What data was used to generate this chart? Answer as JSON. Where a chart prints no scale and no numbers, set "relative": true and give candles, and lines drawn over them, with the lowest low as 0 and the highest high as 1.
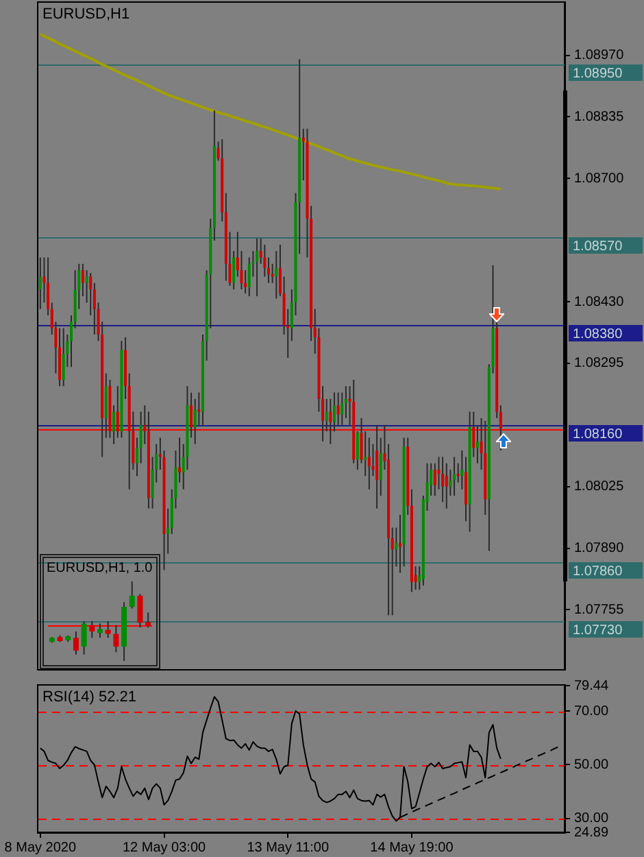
{
  "chart_data": [
    {
      "type": "candlestick",
      "title": "EURUSD,H1",
      "categories": [
        null,
        null,
        null,
        null,
        null,
        null,
        null,
        null,
        null,
        null,
        null,
        null,
        null,
        null,
        null,
        null,
        null,
        null,
        null,
        null,
        null,
        null,
        null,
        null,
        null,
        null,
        null,
        null,
        null,
        null,
        null,
        null,
        null,
        null,
        null,
        null,
        null,
        null,
        null,
        null,
        null,
        null,
        null,
        null,
        null,
        null,
        null,
        null,
        null,
        null,
        null,
        null,
        null,
        null,
        null,
        null,
        null,
        null,
        null,
        null,
        null,
        null,
        null,
        null,
        null,
        null,
        null,
        null,
        null,
        null,
        null,
        null,
        null,
        null,
        null,
        null,
        null,
        null,
        null,
        null,
        null,
        null,
        null,
        null,
        null,
        null,
        null,
        null,
        null,
        null,
        null,
        null,
        null,
        null,
        null,
        null,
        null,
        null,
        null,
        null,
        null,
        null,
        null,
        null,
        null,
        null,
        null,
        null,
        null,
        null,
        null,
        null,
        null,
        null,
        null,
        null,
        null,
        null,
        null,
        null,
        null,
        null,
        null,
        null,
        null,
        null,
        null,
        null,
        null,
        null,
        null,
        null,
        null,
        null,
        null,
        null
      ],
      "ohlc": [
        [
          1.08457,
          1.08527,
          1.08414,
          1.08485
        ],
        [
          1.08485,
          1.08527,
          1.08428,
          1.08471
        ],
        [
          1.08471,
          1.08527,
          1.084,
          1.08414
        ],
        [
          1.08414,
          1.08428,
          1.08358,
          1.08372
        ],
        [
          1.08372,
          1.08386,
          1.08273,
          1.0833
        ],
        [
          1.0833,
          1.08372,
          1.08245,
          1.08259
        ],
        [
          1.08259,
          1.08372,
          1.08245,
          1.08316
        ],
        [
          1.08316,
          1.08358,
          1.08287,
          1.08344
        ],
        [
          1.08344,
          1.084,
          1.08287,
          1.08386
        ],
        [
          1.08386,
          1.08499,
          1.08372,
          1.08457
        ],
        [
          1.08457,
          1.08513,
          1.08414,
          1.08499
        ],
        [
          1.08499,
          1.08513,
          1.08442,
          1.08471
        ],
        [
          1.08471,
          1.08499,
          1.08428,
          1.08485
        ],
        [
          1.08485,
          1.08493,
          1.084,
          1.08457
        ],
        [
          1.08457,
          1.08471,
          1.08358,
          1.08414
        ],
        [
          1.08414,
          1.08428,
          1.08344,
          1.08358
        ],
        [
          1.08358,
          1.08386,
          1.0809,
          1.08175
        ],
        [
          1.08175,
          1.08273,
          1.08132,
          1.08245
        ],
        [
          1.08245,
          1.08259,
          1.08132,
          1.08146
        ],
        [
          1.08146,
          1.08203,
          1.08118,
          1.08189
        ],
        [
          1.08189,
          1.08245,
          1.08132,
          1.08146
        ],
        [
          1.08146,
          1.08344,
          1.08132,
          1.08324
        ],
        [
          1.08324,
          1.08352,
          1.08217,
          1.08245
        ],
        [
          1.08245,
          1.08273,
          1.08019,
          1.08146
        ],
        [
          1.08146,
          1.08189,
          1.08062,
          1.08076
        ],
        [
          1.08076,
          1.08132,
          1.08048,
          1.0811
        ],
        [
          1.0811,
          1.08189,
          1.08076,
          1.0816
        ],
        [
          1.0816,
          1.08203,
          1.08118,
          1.08146
        ],
        [
          1.08146,
          1.08189,
          1.07977,
          1.08
        ],
        [
          1.08,
          1.0809,
          1.07977,
          1.08062
        ],
        [
          1.08062,
          1.08118,
          1.08034,
          1.08096
        ],
        [
          1.08096,
          1.08132,
          1.08062,
          1.0809
        ],
        [
          1.0809,
          1.08104,
          1.07842,
          1.07921
        ],
        [
          1.07921,
          1.07977,
          1.07878,
          1.07935
        ],
        [
          1.07935,
          1.08019,
          1.07921,
          1.08
        ],
        [
          1.08,
          1.08104,
          1.07977,
          1.08067
        ],
        [
          1.08067,
          1.08132,
          1.08034,
          1.08056
        ],
        [
          1.08056,
          1.08118,
          1.08019,
          1.0809
        ],
        [
          1.0809,
          1.08245,
          1.08062,
          1.08203
        ],
        [
          1.08203,
          1.08231,
          1.08132,
          1.08155
        ],
        [
          1.08155,
          1.08217,
          1.08118,
          1.08194
        ],
        [
          1.08194,
          1.08231,
          1.0816,
          1.08189
        ],
        [
          1.08189,
          1.08358,
          1.0816,
          1.08344
        ],
        [
          1.08344,
          1.08499,
          1.08301,
          1.0849
        ],
        [
          1.0849,
          1.08612,
          1.08372,
          1.08592
        ],
        [
          1.08592,
          1.08849,
          1.08564,
          1.08772
        ],
        [
          1.08767,
          1.08781,
          1.08739,
          1.08744
        ],
        [
          1.08744,
          1.08786,
          1.08606,
          1.08626
        ],
        [
          1.08626,
          1.08668,
          1.08476,
          1.08513
        ],
        [
          1.08513,
          1.08583,
          1.08465,
          1.08471
        ],
        [
          1.08471,
          1.08541,
          1.08457,
          1.08527
        ],
        [
          1.08527,
          1.08583,
          1.08485,
          1.08499
        ],
        [
          1.08499,
          1.08541,
          1.08457,
          1.08471
        ],
        [
          1.08471,
          1.08499,
          1.08448,
          1.08462
        ],
        [
          1.08462,
          1.08527,
          1.08442,
          1.08513
        ],
        [
          1.08513,
          1.08541,
          1.08485,
          1.08518
        ],
        [
          1.08518,
          1.08569,
          1.08442,
          1.08541
        ],
        [
          1.08541,
          1.08569,
          1.08513,
          1.08527
        ],
        [
          1.08527,
          1.08555,
          1.08485,
          1.08504
        ],
        [
          1.08504,
          1.08527,
          1.08471,
          1.0849
        ],
        [
          1.0849,
          1.08513,
          1.08471,
          1.08485
        ],
        [
          1.08485,
          1.08541,
          1.08437,
          1.08504
        ],
        [
          1.08504,
          1.08555,
          1.08442,
          1.08448
        ],
        [
          1.08448,
          1.08485,
          1.08358,
          1.08378
        ],
        [
          1.08378,
          1.08414,
          1.08307,
          1.08372
        ],
        [
          1.08372,
          1.08457,
          1.08344,
          1.08428
        ],
        [
          1.08428,
          1.08668,
          1.084,
          1.08648
        ],
        [
          1.08648,
          1.08961,
          1.08535,
          1.08789
        ],
        [
          1.08789,
          1.08809,
          1.08696,
          1.08781
        ],
        [
          1.08781,
          1.08809,
          1.08527,
          1.08612
        ],
        [
          1.08612,
          1.0864,
          1.08344,
          1.08372
        ],
        [
          1.08372,
          1.08414,
          1.08316,
          1.08352
        ],
        [
          1.08352,
          1.08372,
          1.08189,
          1.08217
        ],
        [
          1.08217,
          1.08245,
          1.08124,
          1.08169
        ],
        [
          1.08169,
          1.08217,
          1.08146,
          1.08189
        ],
        [
          1.08189,
          1.08217,
          1.08118,
          1.08166
        ],
        [
          1.08166,
          1.08231,
          1.08146,
          1.08203
        ],
        [
          1.08203,
          1.08231,
          1.0816,
          1.08183
        ],
        [
          1.08183,
          1.08231,
          1.0816,
          1.08208
        ],
        [
          1.08208,
          1.08245,
          1.08175,
          1.08217
        ],
        [
          1.08217,
          1.08245,
          1.0816,
          1.08211
        ],
        [
          1.08211,
          1.08259,
          1.08076,
          1.08084
        ],
        [
          1.08084,
          1.08146,
          1.08062,
          1.08143
        ],
        [
          1.08143,
          1.08175,
          1.08076,
          1.08084
        ],
        [
          1.08084,
          1.08146,
          1.08048,
          1.0809
        ],
        [
          1.0809,
          1.08132,
          1.08019,
          1.0807
        ],
        [
          1.0807,
          1.08118,
          1.08048,
          1.08062
        ],
        [
          1.08104,
          1.0816,
          1.07977,
          1.08039
        ],
        [
          1.08039,
          1.08132,
          1.08005,
          1.08098
        ],
        [
          1.08098,
          1.0816,
          1.08062,
          1.08081
        ],
        [
          1.08084,
          1.08118,
          1.07743,
          1.07912
        ],
        [
          1.07912,
          1.07935,
          1.07743,
          1.07887
        ],
        [
          1.07887,
          1.07935,
          1.0785,
          1.07901
        ],
        [
          1.07901,
          1.07963,
          1.07836,
          1.07893
        ],
        [
          1.07898,
          1.08132,
          1.0785,
          1.08112
        ],
        [
          1.08112,
          1.08132,
          1.07963,
          1.07983
        ],
        [
          1.07983,
          1.08019,
          1.07794,
          1.07816
        ],
        [
          1.07831,
          1.0785,
          1.07799,
          1.07816
        ],
        [
          1.07816,
          1.0785,
          1.07799,
          1.07831
        ],
        [
          1.07822,
          1.08005,
          1.07808,
          1.07997
        ],
        [
          1.07991,
          1.08076,
          1.07972,
          1.08034
        ],
        [
          1.08028,
          1.08076,
          1.08005,
          1.08062
        ],
        [
          1.08062,
          1.08076,
          1.08005,
          1.08028
        ],
        [
          1.08062,
          1.0809,
          1.08019,
          1.08053
        ],
        [
          1.08053,
          1.0809,
          1.07991,
          1.08025
        ],
        [
          1.08048,
          1.08076,
          1.07977,
          1.08025
        ],
        [
          1.08025,
          1.08062,
          1.08005,
          1.08039
        ],
        [
          1.08039,
          1.0809,
          1.08005,
          1.08053
        ],
        [
          1.08053,
          1.08076,
          1.08034,
          1.08048
        ],
        [
          1.08048,
          1.08104,
          1.08019,
          1.08062
        ],
        [
          1.08056,
          1.0809,
          1.07949,
          1.07986
        ],
        [
          1.07986,
          1.08189,
          1.07926,
          1.08155
        ],
        [
          1.08155,
          1.08189,
          1.0809,
          1.0811
        ],
        [
          1.0811,
          1.0816,
          1.08076,
          1.08124
        ],
        [
          1.08124,
          1.08175,
          1.08062,
          1.08098
        ],
        [
          1.08098,
          1.08169,
          1.07963,
          1.07997
        ],
        [
          1.07997,
          1.08293,
          1.07884,
          1.08287
        ],
        [
          1.08287,
          1.0851,
          1.08273,
          1.08372
        ],
        [
          1.08372,
          1.08386,
          1.08175,
          1.08189
        ],
        [
          1.08189,
          1.08203,
          1.08104,
          1.08152
        ],
        null,
        null,
        null,
        null,
        null,
        null,
        null,
        null,
        null,
        null,
        null,
        null,
        null,
        null,
        null,
        null
      ],
      "series": [
        {
          "type": "line",
          "color": "#a0a000",
          "values": [
            1.09016,
            1.09012,
            1.09008,
            1.09004,
            1.09,
            1.08995,
            1.08991,
            1.08987,
            1.08983,
            1.08979,
            1.08975,
            1.08971,
            1.08967,
            1.08963,
            1.08959,
            1.08954,
            1.0895,
            1.08946,
            1.08942,
            1.08938,
            1.08934,
            1.0893,
            1.08926,
            1.08922,
            1.08919,
            1.08915,
            1.08911,
            1.08907,
            1.08903,
            1.08899,
            1.08895,
            1.08891,
            1.08887,
            1.08883,
            1.0888,
            1.08877,
            1.08874,
            1.08871,
            1.08868,
            1.08865,
            1.08862,
            1.08859,
            1.08856,
            1.08853,
            1.0885,
            1.08848,
            1.08845,
            1.08842,
            1.0884,
            1.08837,
            1.08834,
            1.08832,
            1.08829,
            1.08826,
            1.08824,
            1.08821,
            1.08818,
            1.08815,
            1.08813,
            1.0881,
            1.08807,
            1.08804,
            1.08801,
            1.08798,
            1.08795,
            1.08792,
            1.08789,
            1.08786,
            1.08783,
            1.08779,
            1.08776,
            1.08773,
            1.0877,
            1.08766,
            1.08763,
            1.0876,
            1.08756,
            1.08753,
            1.0875,
            1.08746,
            1.08743,
            1.08741,
            1.08738,
            1.08736,
            1.08734,
            1.08731,
            1.08729,
            1.08727,
            1.08725,
            1.08723,
            1.08721,
            1.08719,
            1.08718,
            1.08716,
            1.08714,
            1.08712,
            1.0871,
            1.08708,
            1.08706,
            1.08703,
            1.08701,
            1.08699,
            1.08697,
            1.08695,
            1.08693,
            1.0869,
            1.08688,
            1.08687,
            1.08686,
            1.08686,
            1.08685,
            1.08684,
            1.08684,
            1.08683,
            1.08682,
            1.08681,
            1.0868,
            1.08679,
            1.08678,
            1.08677,
            null,
            null,
            null,
            null,
            null,
            null,
            null,
            null,
            null,
            null,
            null,
            null,
            null,
            null,
            null,
            null
          ]
        }
      ],
      "ylim": [
        1.07625,
        1.09085
      ],
      "yticks": [
        {
          "value": 1.0897,
          "label": "1.08970"
        },
        {
          "value": 1.08835,
          "label": "1.08835"
        },
        {
          "value": 1.087,
          "label": "1.08700"
        },
        {
          "value": 1.0843,
          "label": "1.08430"
        },
        {
          "value": 1.08295,
          "label": "1.08295"
        },
        {
          "value": 1.08025,
          "label": "1.08025"
        },
        {
          "value": 1.0789,
          "label": "1.07890"
        },
        {
          "value": 1.07755,
          "label": "1.07755"
        }
      ],
      "ref_lines": [
        {
          "axis": "y",
          "value": 1.0895,
          "label": "1.08950",
          "color": "#2e6c6c"
        },
        {
          "axis": "y",
          "value": 1.0857,
          "label": "1.08570",
          "color": "#2e6c6c"
        },
        {
          "axis": "y",
          "value": 1.0838,
          "label": "1.08380",
          "color": "#1c1c8c"
        },
        {
          "axis": "y",
          "value": 1.0816,
          "label": "1.08160",
          "color": "#1c1c8c"
        },
        {
          "axis": "y",
          "value": 1.08152,
          "color": "#ff0000"
        },
        {
          "axis": "y",
          "value": 1.0786,
          "label": "1.07860",
          "color": "#2e6c6c"
        },
        {
          "axis": "y",
          "value": 1.0773,
          "label": "1.07730",
          "color": "#2e6c6c"
        }
      ],
      "tick_labels": "y"
    },
    {
      "type": "line",
      "title": "RSI(14) 52.21",
      "categories": [
        "8 May 2020",
        null,
        null,
        null,
        null,
        null,
        null,
        null,
        null,
        null,
        null,
        null,
        null,
        null,
        null,
        null,
        null,
        null,
        null,
        null,
        null,
        null,
        null,
        null,
        null,
        null,
        null,
        null,
        null,
        null,
        null,
        null,
        "12 May 03:00",
        null,
        null,
        null,
        null,
        null,
        null,
        null,
        null,
        null,
        null,
        null,
        null,
        null,
        null,
        null,
        null,
        null,
        null,
        null,
        null,
        null,
        null,
        null,
        null,
        null,
        null,
        null,
        null,
        null,
        null,
        null,
        "13 May 11:00",
        null,
        null,
        null,
        null,
        null,
        null,
        null,
        null,
        null,
        null,
        null,
        null,
        null,
        null,
        null,
        null,
        null,
        null,
        null,
        null,
        null,
        null,
        null,
        null,
        null,
        null,
        null,
        null,
        null,
        null,
        null,
        "14 May 19:00",
        null,
        null,
        null,
        null,
        null,
        null,
        null,
        null,
        null,
        null,
        null,
        null,
        null,
        null,
        null,
        null,
        null,
        null,
        null,
        null,
        null,
        null,
        null,
        null,
        null,
        null,
        null,
        null,
        null,
        null,
        null,
        null,
        null,
        null,
        null,
        null,
        null,
        null,
        null
      ],
      "series": [
        {
          "color": "#000000",
          "values": [
            56.2,
            55,
            51.6,
            51,
            50.5,
            48.6,
            49.8,
            51.6,
            54.5,
            56.7,
            56,
            55.5,
            55,
            51.6,
            50,
            43.6,
            37.8,
            42,
            40.1,
            37.8,
            41.3,
            49.3,
            44.7,
            41.3,
            38.3,
            40.1,
            39,
            41.3,
            37.1,
            41.3,
            42.9,
            41.3,
            35.1,
            36.7,
            40.1,
            44.3,
            44.7,
            47,
            53.2,
            50.5,
            52.8,
            52.1,
            62,
            66.6,
            71.1,
            75.3,
            73.4,
            66.6,
            59.7,
            59,
            59.2,
            57.4,
            56.2,
            57.8,
            55.5,
            58.5,
            56.9,
            56.2,
            56.2,
            55,
            55.7,
            52.1,
            46.6,
            49.3,
            49.8,
            65.4,
            70,
            68.9,
            57.4,
            50,
            44.7,
            43.6,
            38.3,
            36.7,
            36,
            36.5,
            37.4,
            39,
            39,
            40.1,
            37.8,
            40.6,
            37.4,
            36.7,
            36.5,
            36.7,
            35.1,
            39,
            38,
            39,
            34.4,
            30.9,
            29.1,
            30.5,
            49.3,
            43.6,
            33.7,
            34.4,
            39.5,
            44.7,
            49.3,
            50.5,
            49.3,
            50.9,
            48.6,
            49,
            49.3,
            50.5,
            50.8,
            51.1,
            45.2,
            57.4,
            55,
            55,
            52.8,
            45.2,
            62,
            64.9,
            56.2,
            52.2,
            null,
            null,
            null,
            null,
            null,
            null,
            null,
            null,
            null,
            null,
            null,
            null,
            null,
            null,
            null,
            null
          ]
        },
        {
          "color": "#000000",
          "line_style": "dashed",
          "values": [
            null,
            null,
            null,
            null,
            null,
            null,
            null,
            null,
            null,
            null,
            null,
            null,
            null,
            null,
            null,
            null,
            null,
            null,
            null,
            null,
            null,
            null,
            null,
            null,
            null,
            null,
            null,
            null,
            null,
            null,
            null,
            null,
            null,
            null,
            null,
            null,
            null,
            null,
            null,
            null,
            null,
            null,
            null,
            null,
            null,
            null,
            null,
            null,
            null,
            null,
            null,
            null,
            null,
            null,
            null,
            null,
            null,
            null,
            null,
            null,
            null,
            null,
            null,
            null,
            null,
            null,
            null,
            null,
            null,
            null,
            null,
            null,
            null,
            null,
            null,
            null,
            null,
            null,
            null,
            null,
            null,
            null,
            null,
            null,
            null,
            null,
            null,
            null,
            null,
            null,
            null,
            null,
            null,
            30.5,
            31.1,
            31.8,
            32.4,
            33.1,
            33.7,
            34.3,
            35,
            35.6,
            36.3,
            36.9,
            37.5,
            38.2,
            38.8,
            39.4,
            40.1,
            40.7,
            41.4,
            42,
            42.6,
            43.3,
            43.9,
            44.6,
            45.2,
            45.8,
            46.5,
            47.1,
            47.7,
            48.4,
            49,
            49.7,
            50.3,
            50.9,
            51.6,
            52.2,
            52.9,
            53.5,
            54.1,
            54.8,
            55.4,
            56.1,
            56.7,
            null
          ]
        }
      ],
      "ylim": [
        24.89,
        79.44
      ],
      "yticks": [
        79.44,
        {
          "value": 70,
          "label": "70.00"
        },
        {
          "value": 50,
          "label": "50.00"
        },
        {
          "value": 30,
          "label": "30.00"
        },
        24.89
      ],
      "ref_lines": [
        {
          "axis": "y",
          "value": 70,
          "color": "#ff0000",
          "line_style": "dashed"
        },
        {
          "axis": "y",
          "value": 50,
          "color": "#ff0000",
          "line_style": "dashed"
        },
        {
          "axis": "y",
          "value": 30,
          "color": "#ff0000",
          "line_style": "dashed"
        }
      ]
    },
    {
      "type": "candlestick",
      "title": "EURUSD,H1, 1.0",
      "categories": [
        null,
        null,
        null,
        null,
        null,
        null,
        null,
        null,
        null,
        null,
        null,
        null,
        null
      ],
      "ohlc": [
        [
          0.24,
          0.3,
          0.23,
          0.29
        ],
        [
          0.3,
          0.32,
          0.24,
          0.25
        ],
        [
          0.26,
          0.32,
          0.24,
          0.31
        ],
        [
          0.29,
          0.37,
          0.08,
          0.13
        ],
        [
          0.18,
          0.5,
          0.08,
          0.47
        ],
        [
          0.45,
          0.5,
          0.29,
          0.37
        ],
        [
          0.35,
          0.47,
          0.29,
          0.4
        ],
        [
          0.39,
          0.5,
          0.29,
          0.34
        ],
        [
          0.34,
          0.45,
          0.11,
          0.18
        ],
        [
          0.18,
          0.74,
          0,
          0.68
        ],
        [
          0.68,
          1,
          0.66,
          0.82
        ],
        [
          0.82,
          0.84,
          0.42,
          0.48
        ],
        [
          0.49,
          0.61,
          0.42,
          0.44
        ]
      ],
      "relative": true,
      "tick_labels": false,
      "ref_lines": [
        {
          "axis": "y",
          "value": 0.45,
          "color": "#ff0000"
        }
      ]
    }
  ]
}
